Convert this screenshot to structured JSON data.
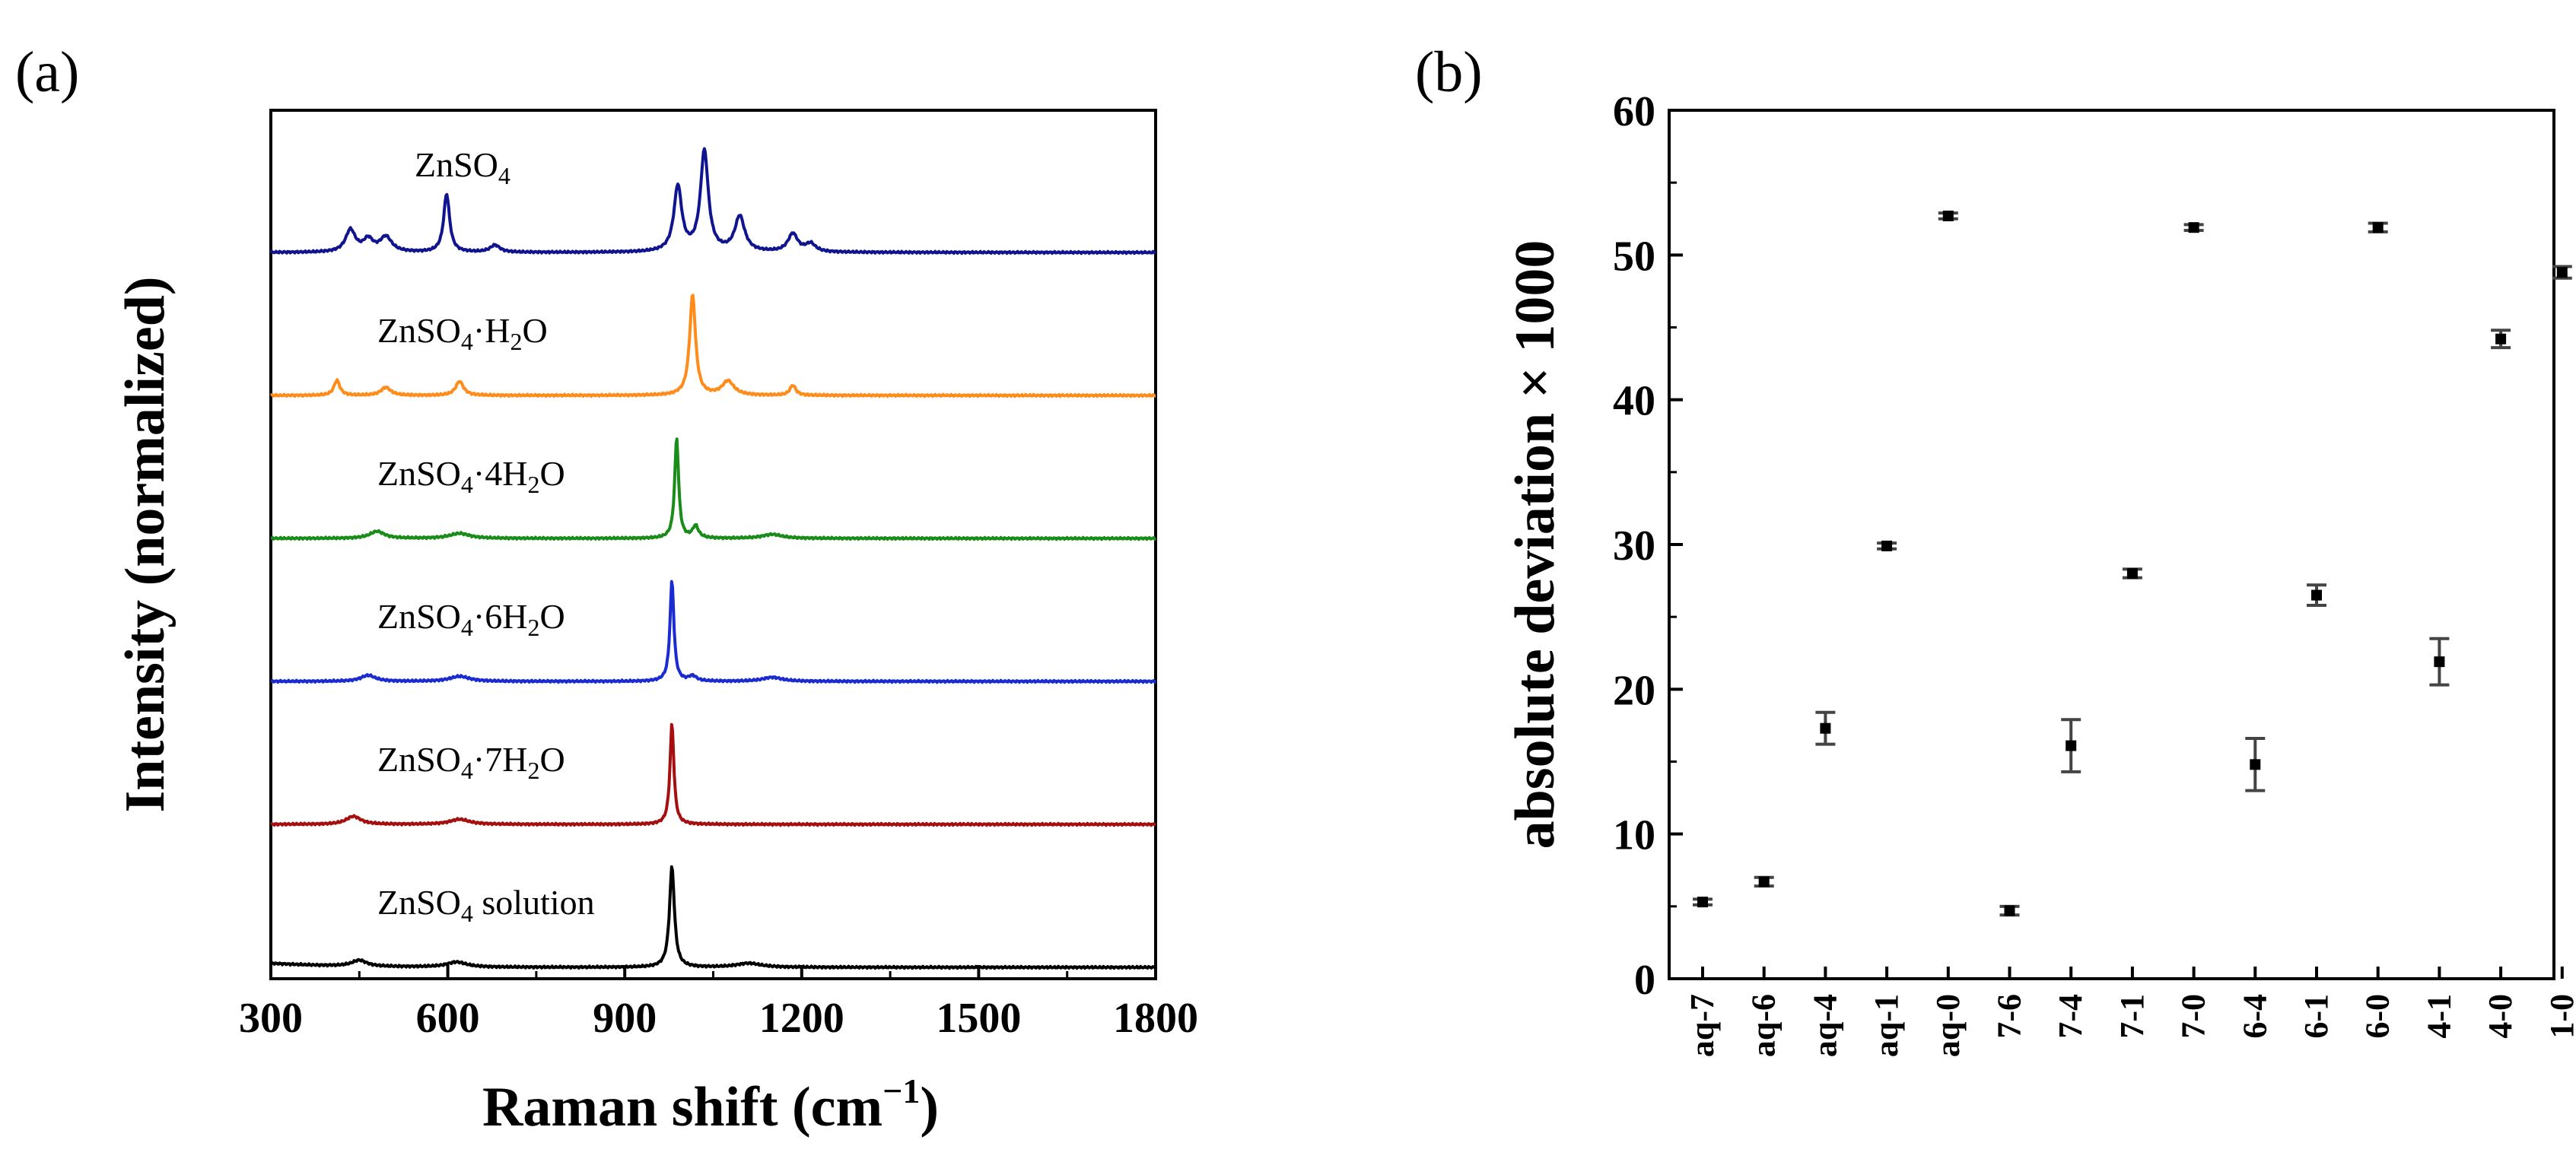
{
  "panel_a_label": "(a)",
  "panel_b_label": "(b)",
  "chart_data": [
    {
      "type": "line",
      "panel": "(a)",
      "xlabel_main": "Raman shift (cm",
      "xlabel_sup": "−1",
      "xlabel_close": ")",
      "ylabel": "Intensity (normalized)",
      "xlim": [
        300,
        1800
      ],
      "xticks": [
        "300",
        "600",
        "900",
        "1200",
        "1500",
        "1800"
      ],
      "yticks_shown": false,
      "series": [
        {
          "name": "ZnSO4",
          "label_main": "ZnSO",
          "label_sub": "4",
          "label_rest": "",
          "color": "#10158f",
          "offset": 5.0,
          "peaks": [
            [
              435,
              0.22,
              10
            ],
            [
              465,
              0.12,
              10
            ],
            [
              495,
              0.15,
              12
            ],
            [
              598,
              0.58,
              6
            ],
            [
              680,
              0.07,
              10
            ],
            [
              990,
              0.65,
              8
            ],
            [
              1035,
              1.0,
              8
            ],
            [
              1095,
              0.35,
              10
            ],
            [
              1185,
              0.18,
              10
            ],
            [
              1215,
              0.08,
              10
            ]
          ]
        },
        {
          "name": "ZnSO4·H2O",
          "label_main": "ZnSO",
          "label_sub": "4",
          "label_rest": "·H",
          "label_sub2": "2",
          "label_end": "O",
          "color": "#ff8c1a",
          "offset": 4.0,
          "peaks": [
            [
              412,
              0.15,
              6
            ],
            [
              495,
              0.08,
              10
            ],
            [
              620,
              0.14,
              8
            ],
            [
              1015,
              1.0,
              6
            ],
            [
              1075,
              0.14,
              12
            ],
            [
              1185,
              0.1,
              6
            ]
          ]
        },
        {
          "name": "ZnSO4·4H2O",
          "label_main": "ZnSO",
          "label_sub": "4",
          "label_rest": "·4H",
          "label_sub2": "2",
          "label_end": "O",
          "color": "#1a8c1a",
          "offset": 3.0,
          "peaks": [
            [
              480,
              0.07,
              15
            ],
            [
              620,
              0.05,
              20
            ],
            [
              988,
              1.0,
              4
            ],
            [
              1020,
              0.12,
              6
            ],
            [
              1150,
              0.04,
              20
            ]
          ]
        },
        {
          "name": "ZnSO4·6H2O",
          "label_main": "ZnSO",
          "label_sub": "4",
          "label_rest": "·6H",
          "label_sub2": "2",
          "label_end": "O",
          "color": "#1a2bd1",
          "offset": 2.0,
          "peaks": [
            [
              465,
              0.06,
              15
            ],
            [
              620,
              0.05,
              20
            ],
            [
              980,
              1.0,
              4
            ],
            [
              1015,
              0.05,
              8
            ],
            [
              1150,
              0.04,
              20
            ]
          ]
        },
        {
          "name": "ZnSO4·7H2O",
          "label_main": "ZnSO",
          "label_sub": "4",
          "label_rest": "·7H",
          "label_sub2": "2",
          "label_end": "O",
          "color": "#a50f0f",
          "offset": 1.0,
          "peaks": [
            [
              440,
              0.08,
              15
            ],
            [
              620,
              0.05,
              20
            ],
            [
              980,
              1.0,
              4
            ]
          ]
        },
        {
          "name": "ZnSO4 solution",
          "label_main": "ZnSO",
          "label_sub": "4",
          "label_rest": " solution",
          "color": "#000000",
          "offset": 0.0,
          "peaks": [
            [
              450,
              0.06,
              15
            ],
            [
              615,
              0.05,
              20
            ],
            [
              980,
              1.0,
              5
            ],
            [
              1110,
              0.04,
              25
            ]
          ]
        }
      ]
    },
    {
      "type": "scatter",
      "panel": "(b)",
      "ylabel": "absolute deviation × 1000",
      "ylim": [
        0,
        60
      ],
      "yticks": [
        "0",
        "10",
        "20",
        "30",
        "40",
        "50",
        "60"
      ],
      "categories": [
        "aq-7",
        "aq-6",
        "aq-4",
        "aq-1",
        "aq-0",
        "7-6",
        "7-4",
        "7-1",
        "7-0",
        "6-4",
        "6-1",
        "6-0",
        "4-1",
        "4-0",
        "1-0"
      ],
      "values": [
        5.3,
        6.7,
        17.3,
        29.9,
        52.7,
        4.7,
        16.1,
        28.0,
        51.9,
        14.8,
        26.5,
        51.9,
        21.9,
        44.2,
        48.8
      ],
      "errors": [
        0.2,
        0.3,
        1.1,
        0.2,
        0.2,
        0.3,
        1.8,
        0.3,
        0.2,
        1.8,
        0.7,
        0.3,
        1.6,
        0.6,
        0.4
      ]
    }
  ]
}
